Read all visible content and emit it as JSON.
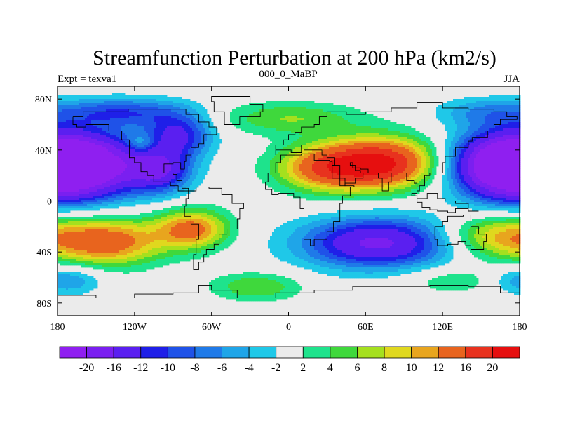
{
  "chart_data": {
    "type": "heatmap",
    "title": "Streamfunction Perturbation at 200 hPa (km2/s)",
    "left_label": "Expt = texva1",
    "center_label": "000_0_MaBP",
    "right_label": "JJA",
    "x_ticks": [
      "180",
      "120W",
      "60W",
      "0",
      "60E",
      "120E",
      "180"
    ],
    "x_tick_values": [
      -180,
      -120,
      -60,
      0,
      60,
      120,
      180
    ],
    "y_ticks": [
      "80N",
      "40N",
      "0",
      "40S",
      "80S"
    ],
    "y_tick_values": [
      80,
      40,
      0,
      -40,
      -80
    ],
    "xlim": [
      -180,
      180
    ],
    "ylim": [
      -90,
      90
    ],
    "colorbar_labels": [
      "-20",
      "-16",
      "-12",
      "-10",
      "-8",
      "-6",
      "-4",
      "-2",
      "2",
      "4",
      "6",
      "8",
      "10",
      "12",
      "16",
      "20"
    ],
    "colorbar_levels": [
      -20,
      -16,
      -12,
      -10,
      -8,
      -6,
      -4,
      -2,
      2,
      4,
      6,
      8,
      10,
      12,
      16,
      20
    ],
    "colorbar_colors": [
      "#8f1ff0",
      "#7a1ff0",
      "#5a1ff0",
      "#1f1fe8",
      "#1f52e8",
      "#1f7ae8",
      "#1fa5e8",
      "#1fc8e8",
      "#ebebeb",
      "#1ee38c",
      "#3fd83c",
      "#a5e01e",
      "#e0d81e",
      "#e8a51e",
      "#e8641e",
      "#e8321e",
      "#e60f0f"
    ],
    "field_centers": [
      {
        "lon": -160,
        "lat": 28,
        "value": -22,
        "width_lon": 35,
        "width_lat": 18
      },
      {
        "lon": 170,
        "lat": 28,
        "value": -22,
        "width_lon": 30,
        "width_lat": 18
      },
      {
        "lon": -85,
        "lat": 52,
        "value": -12,
        "width_lon": 18,
        "width_lat": 12
      },
      {
        "lon": -100,
        "lat": 24,
        "value": -13,
        "width_lon": 17,
        "width_lat": 12
      },
      {
        "lon": 70,
        "lat": -33,
        "value": -17,
        "width_lon": 42,
        "width_lat": 14
      },
      {
        "lon": 30,
        "lat": 26,
        "value": 14,
        "width_lon": 28,
        "width_lat": 13
      },
      {
        "lon": 75,
        "lat": 30,
        "value": 19,
        "width_lon": 30,
        "width_lat": 14
      },
      {
        "lon": -140,
        "lat": -32,
        "value": 14,
        "width_lon": 30,
        "width_lat": 13
      },
      {
        "lon": -75,
        "lat": -22,
        "value": 13,
        "width_lon": 20,
        "width_lat": 11
      },
      {
        "lon": 160,
        "lat": -28,
        "value": 10,
        "width_lon": 30,
        "width_lat": 12
      },
      {
        "lon": -25,
        "lat": -67,
        "value": 6,
        "width_lon": 25,
        "width_lat": 8
      },
      {
        "lon": 130,
        "lat": -62,
        "value": 4,
        "width_lon": 30,
        "width_lat": 8
      },
      {
        "lon": 0,
        "lat": 65,
        "value": 6,
        "width_lon": 40,
        "width_lat": 9
      },
      {
        "lon": -115,
        "lat": 45,
        "value": 5,
        "width_lon": 8,
        "width_lat": 5
      },
      {
        "lon": -175,
        "lat": -62,
        "value": -7,
        "width_lon": 20,
        "width_lat": 8
      },
      {
        "lon": -130,
        "lat": 70,
        "value": -9,
        "width_lon": 35,
        "width_lat": 8
      },
      {
        "lon": 150,
        "lat": 70,
        "value": -5,
        "width_lon": 25,
        "width_lat": 8
      }
    ]
  }
}
